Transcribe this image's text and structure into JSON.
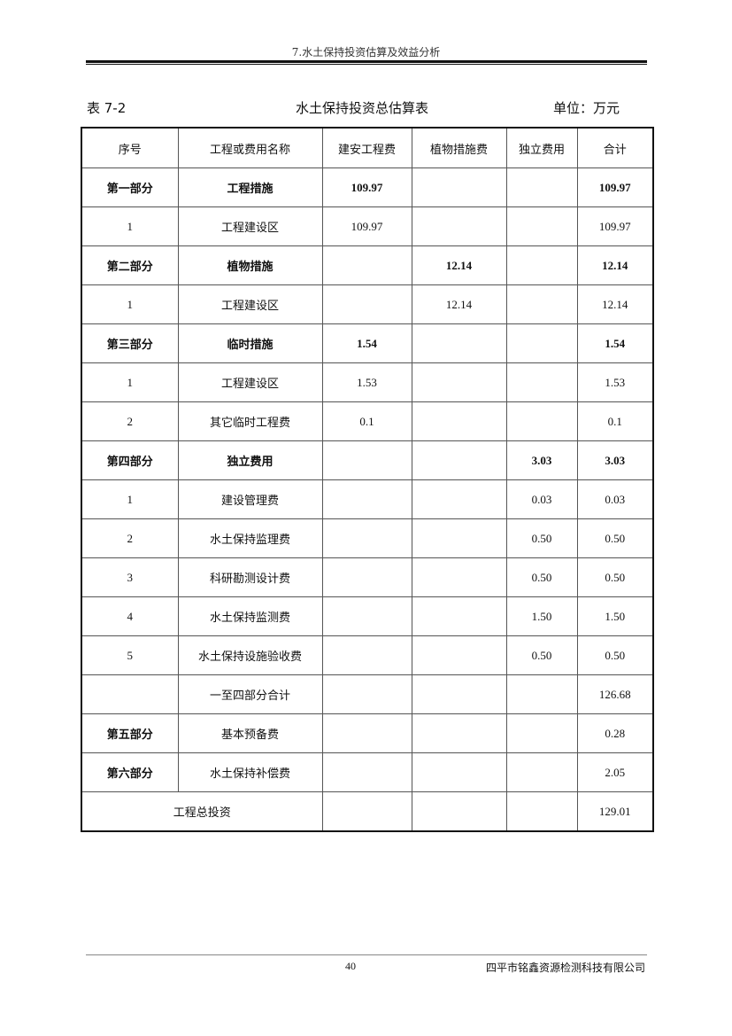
{
  "header": "7.水土保持投资估算及效益分析",
  "caption": {
    "table_no": "表 7-2",
    "title": "水土保持投资总估算表",
    "unit": "单位：万元"
  },
  "columns": [
    "序号",
    "工程或费用名称",
    "建安工程费",
    "植物措施费",
    "独立费用",
    "合计"
  ],
  "rows": [
    {
      "bold": true,
      "cells": [
        "第一部分",
        "工程措施",
        "109.97",
        "",
        "",
        "109.97"
      ]
    },
    {
      "cells": [
        "1",
        "工程建设区",
        "109.97",
        "",
        "",
        "109.97"
      ]
    },
    {
      "bold": true,
      "cells": [
        "第二部分",
        "植物措施",
        "",
        "12.14",
        "",
        "12.14"
      ]
    },
    {
      "cells": [
        "1",
        "工程建设区",
        "",
        "12.14",
        "",
        "12.14"
      ]
    },
    {
      "bold": true,
      "cells": [
        "第三部分",
        "临时措施",
        "1.54",
        "",
        "",
        "1.54"
      ]
    },
    {
      "cells": [
        "1",
        "工程建设区",
        "1.53",
        "",
        "",
        "1.53"
      ]
    },
    {
      "cells": [
        "2",
        "其它临时工程费",
        "0.1",
        "",
        "",
        "0.1"
      ]
    },
    {
      "bold": true,
      "cells": [
        "第四部分",
        "独立费用",
        "",
        "",
        "3.03",
        "3.03"
      ]
    },
    {
      "cells": [
        "1",
        "建设管理费",
        "",
        "",
        "0.03",
        "0.03"
      ]
    },
    {
      "cells": [
        "2",
        "水土保持监理费",
        "",
        "",
        "0.50",
        "0.50"
      ]
    },
    {
      "cells": [
        "3",
        "科研勘测设计费",
        "",
        "",
        "0.50",
        "0.50"
      ]
    },
    {
      "cells": [
        "4",
        "水土保持监测费",
        "",
        "",
        "1.50",
        "1.50"
      ]
    },
    {
      "cells": [
        "5",
        "水土保持设施验收费",
        "",
        "",
        "0.50",
        "0.50"
      ]
    },
    {
      "cells": [
        "",
        "一至四部分合计",
        "",
        "",
        "",
        "126.68"
      ]
    },
    {
      "boldfirst": true,
      "cells": [
        "第五部分",
        "基本预备费",
        "",
        "",
        "",
        "0.28"
      ]
    },
    {
      "boldfirst": true,
      "cells": [
        "第六部分",
        "水土保持补偿费",
        "",
        "",
        "",
        "2.05"
      ]
    }
  ],
  "total": {
    "label": "工程总投资",
    "cells": [
      "",
      "",
      "",
      "129.01"
    ]
  },
  "footer": {
    "page": "40",
    "company": "四平市铭鑫资源检测科技有限公司"
  }
}
